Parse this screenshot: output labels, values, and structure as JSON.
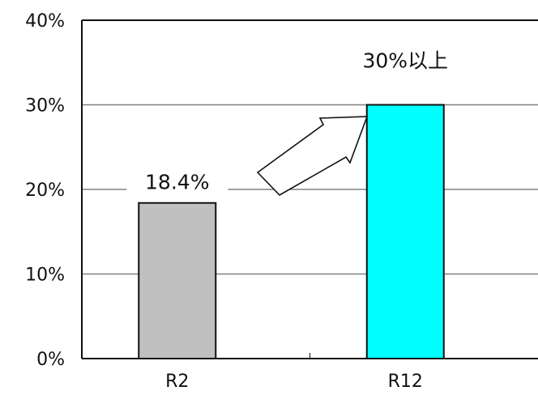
{
  "chart_data": {
    "type": "bar",
    "categories": [
      "R2",
      "R12"
    ],
    "values": [
      18.4,
      30
    ],
    "data_labels": [
      "18.4%",
      "30%以上"
    ],
    "colors": [
      "#c0c0c0",
      "#00ffff"
    ],
    "y_ticks": [
      "0%",
      "10%",
      "20%",
      "30%",
      "40%"
    ],
    "y_tick_values": [
      0,
      10,
      20,
      30,
      40
    ],
    "ylim": [
      0,
      40
    ],
    "grid": true,
    "annotation": "arrow from R2 toward R12"
  }
}
